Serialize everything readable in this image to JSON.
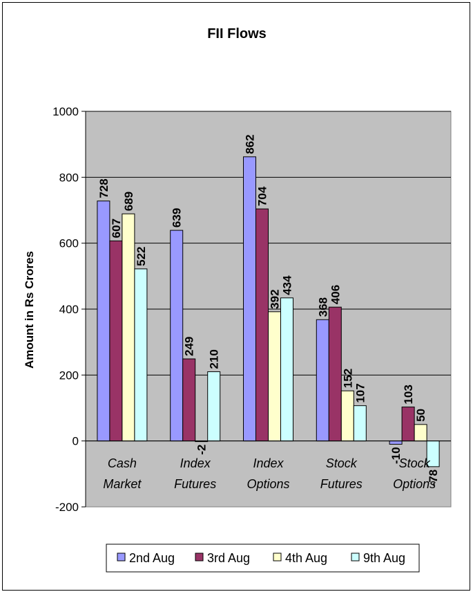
{
  "chart_data": {
    "type": "bar",
    "title": "FII Flows",
    "ylabel": "Amount in Rs Crores",
    "xlabel": "",
    "ylim": [
      -200,
      1000
    ],
    "yticks": [
      -200,
      0,
      200,
      400,
      600,
      800,
      1000
    ],
    "grid": true,
    "legend_position": "bottom",
    "categories": [
      [
        "Cash",
        "Market"
      ],
      [
        "Index",
        "Futures"
      ],
      [
        "Index",
        "Options"
      ],
      [
        "Stock",
        "Futures"
      ],
      [
        "Stock",
        "Options"
      ]
    ],
    "series": [
      {
        "name": "2nd Aug",
        "color": "#9999FF",
        "values": [
          728,
          639,
          862,
          368,
          -10
        ]
      },
      {
        "name": "3rd Aug",
        "color": "#993366",
        "values": [
          607,
          249,
          704,
          406,
          103
        ]
      },
      {
        "name": "4th Aug",
        "color": "#FFFFCC",
        "values": [
          689,
          -2,
          392,
          152,
          50
        ]
      },
      {
        "name": "9th Aug",
        "color": "#CCFFFF",
        "values": [
          522,
          210,
          434,
          107,
          -78
        ]
      }
    ],
    "plot_background": "#C0C0C0"
  }
}
